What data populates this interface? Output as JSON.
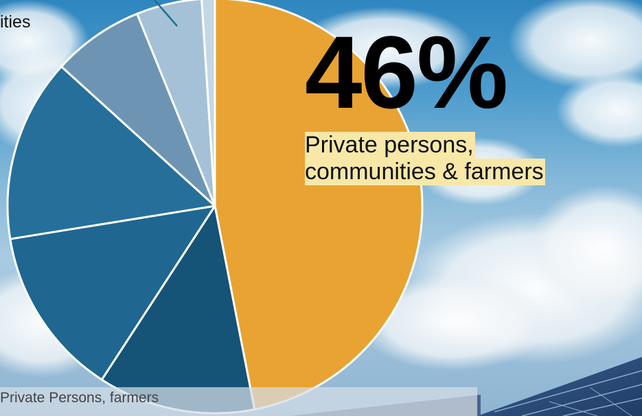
{
  "chart_data": {
    "type": "pie",
    "title": "",
    "slices": [
      {
        "label": "Private persons, communities & farmers",
        "value": 46,
        "color": "#E8A332"
      },
      {
        "label": "",
        "value": 12,
        "color": "#155377"
      },
      {
        "label": "",
        "value": 13,
        "color": "#1F6690"
      },
      {
        "label": "",
        "value": 14,
        "color": "#256F9A"
      },
      {
        "label": "",
        "value": 7,
        "color": "#6D95B3"
      },
      {
        "label": "",
        "value": 5,
        "color": "#A4C1D7"
      },
      {
        "label": "",
        "value": 1,
        "color": "#C4D7E6"
      }
    ],
    "highlight": {
      "value_text": "46%",
      "label_lines": [
        "Private persons,",
        "communities & farmers"
      ]
    }
  },
  "cut_label": "ities",
  "bottom_label": "Private Persons, farmers"
}
